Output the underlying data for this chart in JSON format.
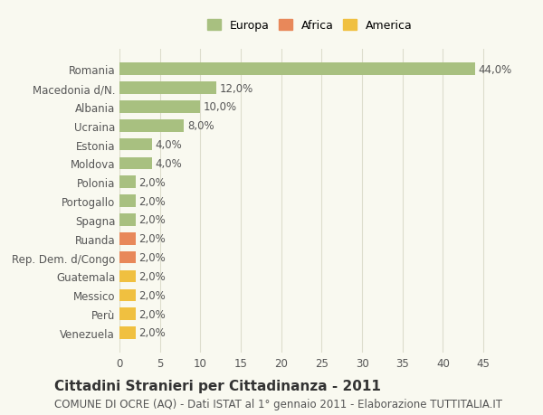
{
  "categories": [
    "Venezuela",
    "Perù",
    "Messico",
    "Guatemala",
    "Rep. Dem. d/Congo",
    "Ruanda",
    "Spagna",
    "Portogallo",
    "Polonia",
    "Moldova",
    "Estonia",
    "Ucraina",
    "Albania",
    "Macedonia d/N.",
    "Romania"
  ],
  "values": [
    2.0,
    2.0,
    2.0,
    2.0,
    2.0,
    2.0,
    2.0,
    2.0,
    2.0,
    4.0,
    4.0,
    8.0,
    10.0,
    12.0,
    44.0
  ],
  "colors": [
    "#f0c040",
    "#f0c040",
    "#f0c040",
    "#f0c040",
    "#e8885a",
    "#e8885a",
    "#a8c080",
    "#a8c080",
    "#a8c080",
    "#a8c080",
    "#a8c080",
    "#a8c080",
    "#a8c080",
    "#a8c080",
    "#a8c080"
  ],
  "labels": [
    "2,0%",
    "2,0%",
    "2,0%",
    "2,0%",
    "2,0%",
    "2,0%",
    "2,0%",
    "2,0%",
    "2,0%",
    "4,0%",
    "4,0%",
    "8,0%",
    "10,0%",
    "12,0%",
    "44,0%"
  ],
  "legend": [
    {
      "label": "Europa",
      "color": "#a8c080"
    },
    {
      "label": "Africa",
      "color": "#e8885a"
    },
    {
      "label": "America",
      "color": "#f0c040"
    }
  ],
  "title": "Cittadini Stranieri per Cittadinanza - 2011",
  "subtitle": "COMUNE DI OCRE (AQ) - Dati ISTAT al 1° gennaio 2011 - Elaborazione TUTTITALIA.IT",
  "xlim": [
    0,
    47
  ],
  "xticks": [
    0,
    5,
    10,
    15,
    20,
    25,
    30,
    35,
    40,
    45
  ],
  "background_color": "#f9f9f0",
  "grid_color": "#ddddcc",
  "bar_height": 0.65,
  "title_fontsize": 11,
  "subtitle_fontsize": 8.5,
  "label_fontsize": 8.5,
  "tick_fontsize": 8.5,
  "legend_fontsize": 9
}
